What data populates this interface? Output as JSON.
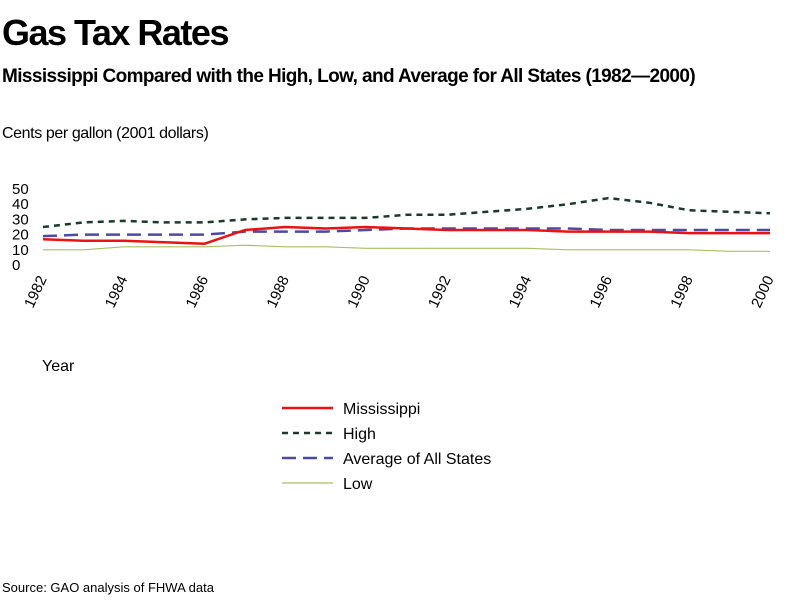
{
  "title": "Gas Tax Rates",
  "subtitle": "Mississippi Compared with the High, Low, and Average for All States (1982—2000)",
  "source": "Source: GAO analysis of FHWA data",
  "chart_data": {
    "type": "line",
    "ylabel": "Cents per gallon (2001 dollars)",
    "xlabel": "Year",
    "ylim": [
      0,
      50
    ],
    "yticks": [
      "50",
      "40",
      "30",
      "20",
      "10",
      "0"
    ],
    "xticks": [
      "1982",
      "1984",
      "1986",
      "1988",
      "1990",
      "1992",
      "1994",
      "1996",
      "1998",
      "2000"
    ],
    "x": [
      1982,
      1983,
      1984,
      1985,
      1986,
      1987,
      1988,
      1989,
      1990,
      1991,
      1992,
      1993,
      1994,
      1995,
      1996,
      1997,
      1998,
      1999,
      2000
    ],
    "grid": false,
    "legend_position": "bottom-center",
    "series": [
      {
        "name": "Mississippi",
        "color": "#ee1111",
        "style": "solid",
        "values": [
          17,
          16,
          16,
          15,
          14,
          23,
          25,
          24,
          25,
          24,
          23,
          23,
          23,
          22,
          22,
          22,
          21,
          21,
          21
        ]
      },
      {
        "name": "High",
        "color": "#1a3a2a",
        "style": "dotted",
        "values": [
          25,
          28,
          29,
          28,
          28,
          30,
          31,
          31,
          31,
          33,
          33,
          35,
          37,
          40,
          44,
          41,
          36,
          35,
          34
        ]
      },
      {
        "name": "Average of All States",
        "color": "#4a4aa8",
        "style": "dashed",
        "values": [
          19,
          20,
          20,
          20,
          20,
          22,
          22,
          22,
          23,
          24,
          24,
          24,
          24,
          24,
          23,
          23,
          23,
          23,
          23
        ]
      },
      {
        "name": "Low",
        "color": "#a8c060",
        "style": "solid",
        "values": [
          10,
          10,
          12,
          12,
          12,
          13,
          12,
          12,
          11,
          11,
          11,
          11,
          11,
          10,
          10,
          10,
          10,
          9,
          9
        ]
      }
    ]
  }
}
